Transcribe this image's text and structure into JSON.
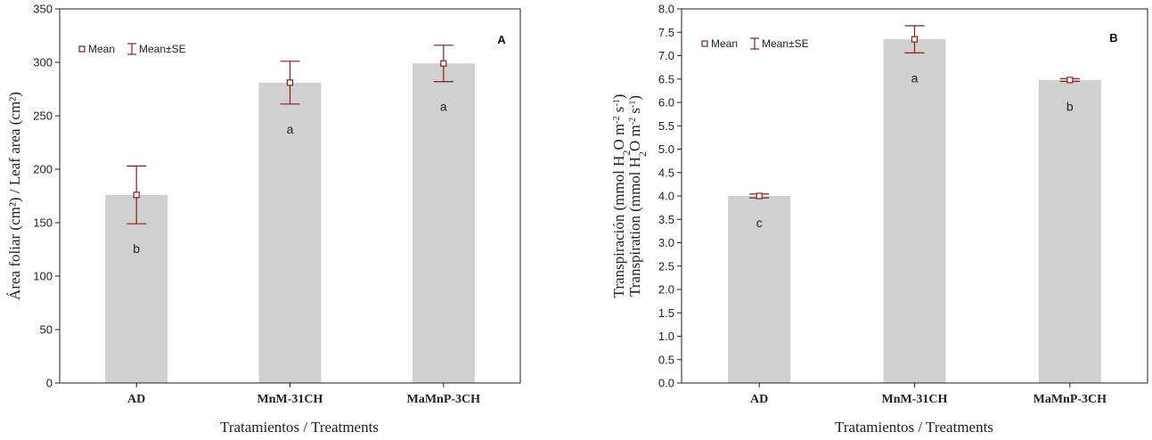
{
  "chart_data": [
    {
      "type": "bar",
      "panel_label": "A",
      "categories": [
        "AD",
        "MnM-31CH",
        "MaMnP-3CH"
      ],
      "values": [
        176,
        281,
        299
      ],
      "se": [
        27,
        20,
        17
      ],
      "letters": [
        "b",
        "a",
        "a"
      ],
      "ylim": [
        0,
        350
      ],
      "yticks": [
        0,
        50,
        100,
        150,
        200,
        250,
        300,
        350
      ],
      "ytick_labels": [
        "0",
        "50",
        "100",
        "150",
        "200",
        "250",
        "300",
        "350"
      ],
      "ylabel": "Área foliar (cm²) / Leaf area (cm²)",
      "xlabel": "Tratamientos / Treatments",
      "legend": {
        "mean": "Mean",
        "se": "Mean±SE",
        "position": "top-left"
      }
    },
    {
      "type": "bar",
      "panel_label": "B",
      "categories": [
        "AD",
        "MnM-31CH",
        "MaMnP-3CH"
      ],
      "values": [
        4.0,
        7.35,
        6.48
      ],
      "se": [
        0.04,
        0.29,
        0.03
      ],
      "letters": [
        "c",
        "a",
        "b"
      ],
      "ylim": [
        0,
        8
      ],
      "yticks": [
        0,
        0.5,
        1,
        1.5,
        2,
        2.5,
        3,
        3.5,
        4,
        4.5,
        5,
        5.5,
        6,
        6.5,
        7,
        7.5,
        8
      ],
      "ytick_labels": [
        "0.0",
        "0.5",
        "1.0",
        "1.5",
        "2.0",
        "2.5",
        "3.0",
        "3.5",
        "4.0",
        "4.5",
        "5.0",
        "5.5",
        "6.0",
        "6.5",
        "7.0",
        "7.5",
        "8.0"
      ],
      "ylabel_lines": [
        {
          "pre": "Transpiración (mmol H",
          "sub": "2",
          "mid": "O m",
          "sup1": "-2",
          "mid2": " s",
          "sup2": "-1",
          "post": ")"
        },
        {
          "pre": "Transpiration (mmol H",
          "sub": "2",
          "mid": "O m",
          "sup1": "-2",
          "mid2": " s",
          "sup2": "-1",
          "post": ")"
        }
      ],
      "xlabel": "Tratamientos / Treatments",
      "legend": {
        "mean": "Mean",
        "se": "Mean±SE",
        "position": "top-left"
      }
    }
  ],
  "colors": {
    "bar": "#d0d0d0",
    "error": "#8b1a1a",
    "axis": "#222222"
  }
}
